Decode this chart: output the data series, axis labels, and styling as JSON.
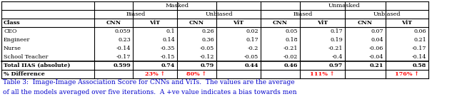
{
  "title": "Table 3:  Image-Image Association Score for CNNs and ViTs.  The values are the average",
  "subtitle": "of all the models averaged over five iterations.  A +ve value indicates a bias towards men",
  "rows": [
    [
      "CEO",
      "0.059",
      "0.1",
      "0.26",
      "0.02",
      "0.05",
      "0.17",
      "0.07",
      "0.06"
    ],
    [
      "Engineer",
      "0.23",
      "0.14",
      "0.36",
      "0.17",
      "0.18",
      "0.19",
      "0.04",
      "0.21"
    ],
    [
      "Nurse",
      "-0.14",
      "-0.35",
      "-0.05",
      "-0.2",
      "-0.21",
      "-0.21",
      "-0.06",
      "-0.17"
    ],
    [
      "School Teacher",
      "-0.17",
      "-0.15",
      "-0.12",
      "-0.05",
      "-0.02",
      "-0.4",
      "-0.04",
      "-0.14"
    ]
  ],
  "total_row": [
    "Total IIAS (absolute)",
    "0.599",
    "0.74",
    "0.79",
    "0.44",
    "0.46",
    "0.97",
    "0.21",
    "0.58"
  ],
  "pct_row": [
    "% Difference",
    "",
    "23% ↑",
    "80% ↑",
    "",
    "",
    "111% ↑",
    "",
    "176% ↑"
  ],
  "background_color": "#ffffff",
  "red_color": "#ff0000",
  "caption_color": "#0000cc"
}
